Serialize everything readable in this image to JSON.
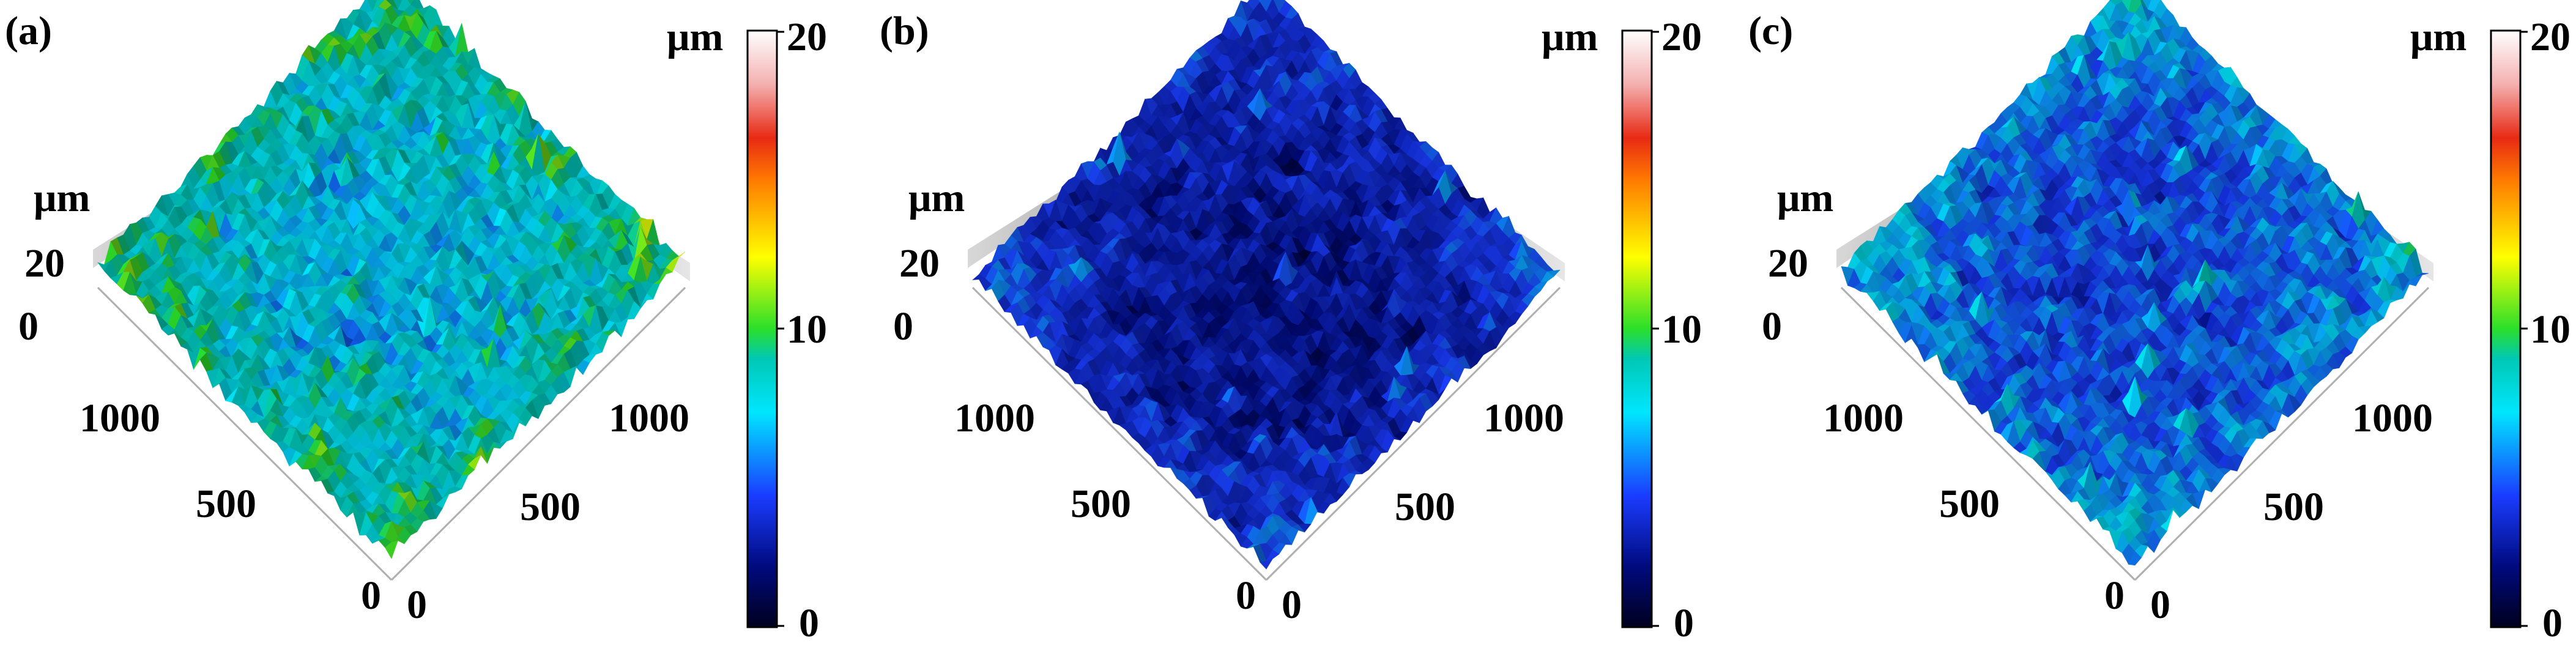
{
  "colormap": {
    "stops": [
      {
        "offset": 0.0,
        "color": "#00001e"
      },
      {
        "offset": 0.1,
        "color": "#000a7c"
      },
      {
        "offset": 0.22,
        "color": "#1a3cff"
      },
      {
        "offset": 0.36,
        "color": "#00e6ff"
      },
      {
        "offset": 0.45,
        "color": "#00c8b4"
      },
      {
        "offset": 0.5,
        "color": "#2adf2a"
      },
      {
        "offset": 0.62,
        "color": "#ffff00"
      },
      {
        "offset": 0.75,
        "color": "#ff7a00"
      },
      {
        "offset": 0.82,
        "color": "#e82a14"
      },
      {
        "offset": 0.91,
        "color": "#f4b0b0"
      },
      {
        "offset": 1.0,
        "color": "#ffffff"
      }
    ]
  },
  "chart_data": [
    {
      "type": "surface",
      "panel_label": "(a)",
      "z_unit": "μm",
      "z_ticks": [
        "20",
        "0"
      ],
      "x_ticks": [
        "0",
        "500",
        "1000"
      ],
      "y_ticks": [
        "0",
        "500",
        "1000"
      ],
      "colorbar": {
        "unit": "μm",
        "min": 0,
        "max": 20,
        "ticks": [
          "0",
          "10",
          "20"
        ]
      },
      "mean_height": 8.5,
      "height_spread": 6.5
    },
    {
      "type": "surface",
      "panel_label": "(b)",
      "z_unit": "μm",
      "z_ticks": [
        "20",
        "0"
      ],
      "x_ticks": [
        "0",
        "500",
        "1000"
      ],
      "y_ticks": [
        "0",
        "500",
        "1000"
      ],
      "colorbar": {
        "unit": "μm",
        "min": 0,
        "max": 20,
        "ticks": [
          "0",
          "10",
          "20"
        ]
      },
      "mean_height": 3.8,
      "height_spread": 5.0
    },
    {
      "type": "surface",
      "panel_label": "(c)",
      "z_unit": "μm",
      "z_ticks": [
        "20",
        "0"
      ],
      "x_ticks": [
        "0",
        "500",
        "1000"
      ],
      "y_ticks": [
        "0",
        "500",
        "1000"
      ],
      "colorbar": {
        "unit": "μm",
        "min": 0,
        "max": 20,
        "ticks": [
          "0",
          "10",
          "20"
        ]
      },
      "mean_height": 5.8,
      "height_spread": 5.5
    }
  ]
}
